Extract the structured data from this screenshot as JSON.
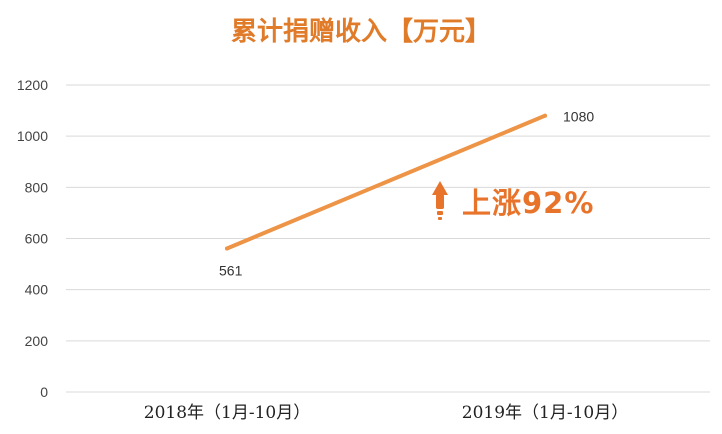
{
  "chart_data": {
    "type": "line",
    "title": "累计捐赠收入【万元】",
    "categories": [
      "2018年（1月-10月）",
      "2019年（1月-10月）"
    ],
    "series": [
      {
        "values": [
          561,
          1080
        ]
      }
    ],
    "data_labels": [
      "561",
      "1080"
    ],
    "ylim": [
      0,
      1200
    ],
    "yticks": [
      0,
      200,
      400,
      600,
      800,
      1000,
      1200
    ],
    "grid": true,
    "annotation": "上涨92%",
    "colors": {
      "title": "#e07b2a",
      "line": "#ee9446",
      "annotation": "#e8732a",
      "arrow": "#e8732a",
      "grid": "#d9d9d9"
    }
  }
}
